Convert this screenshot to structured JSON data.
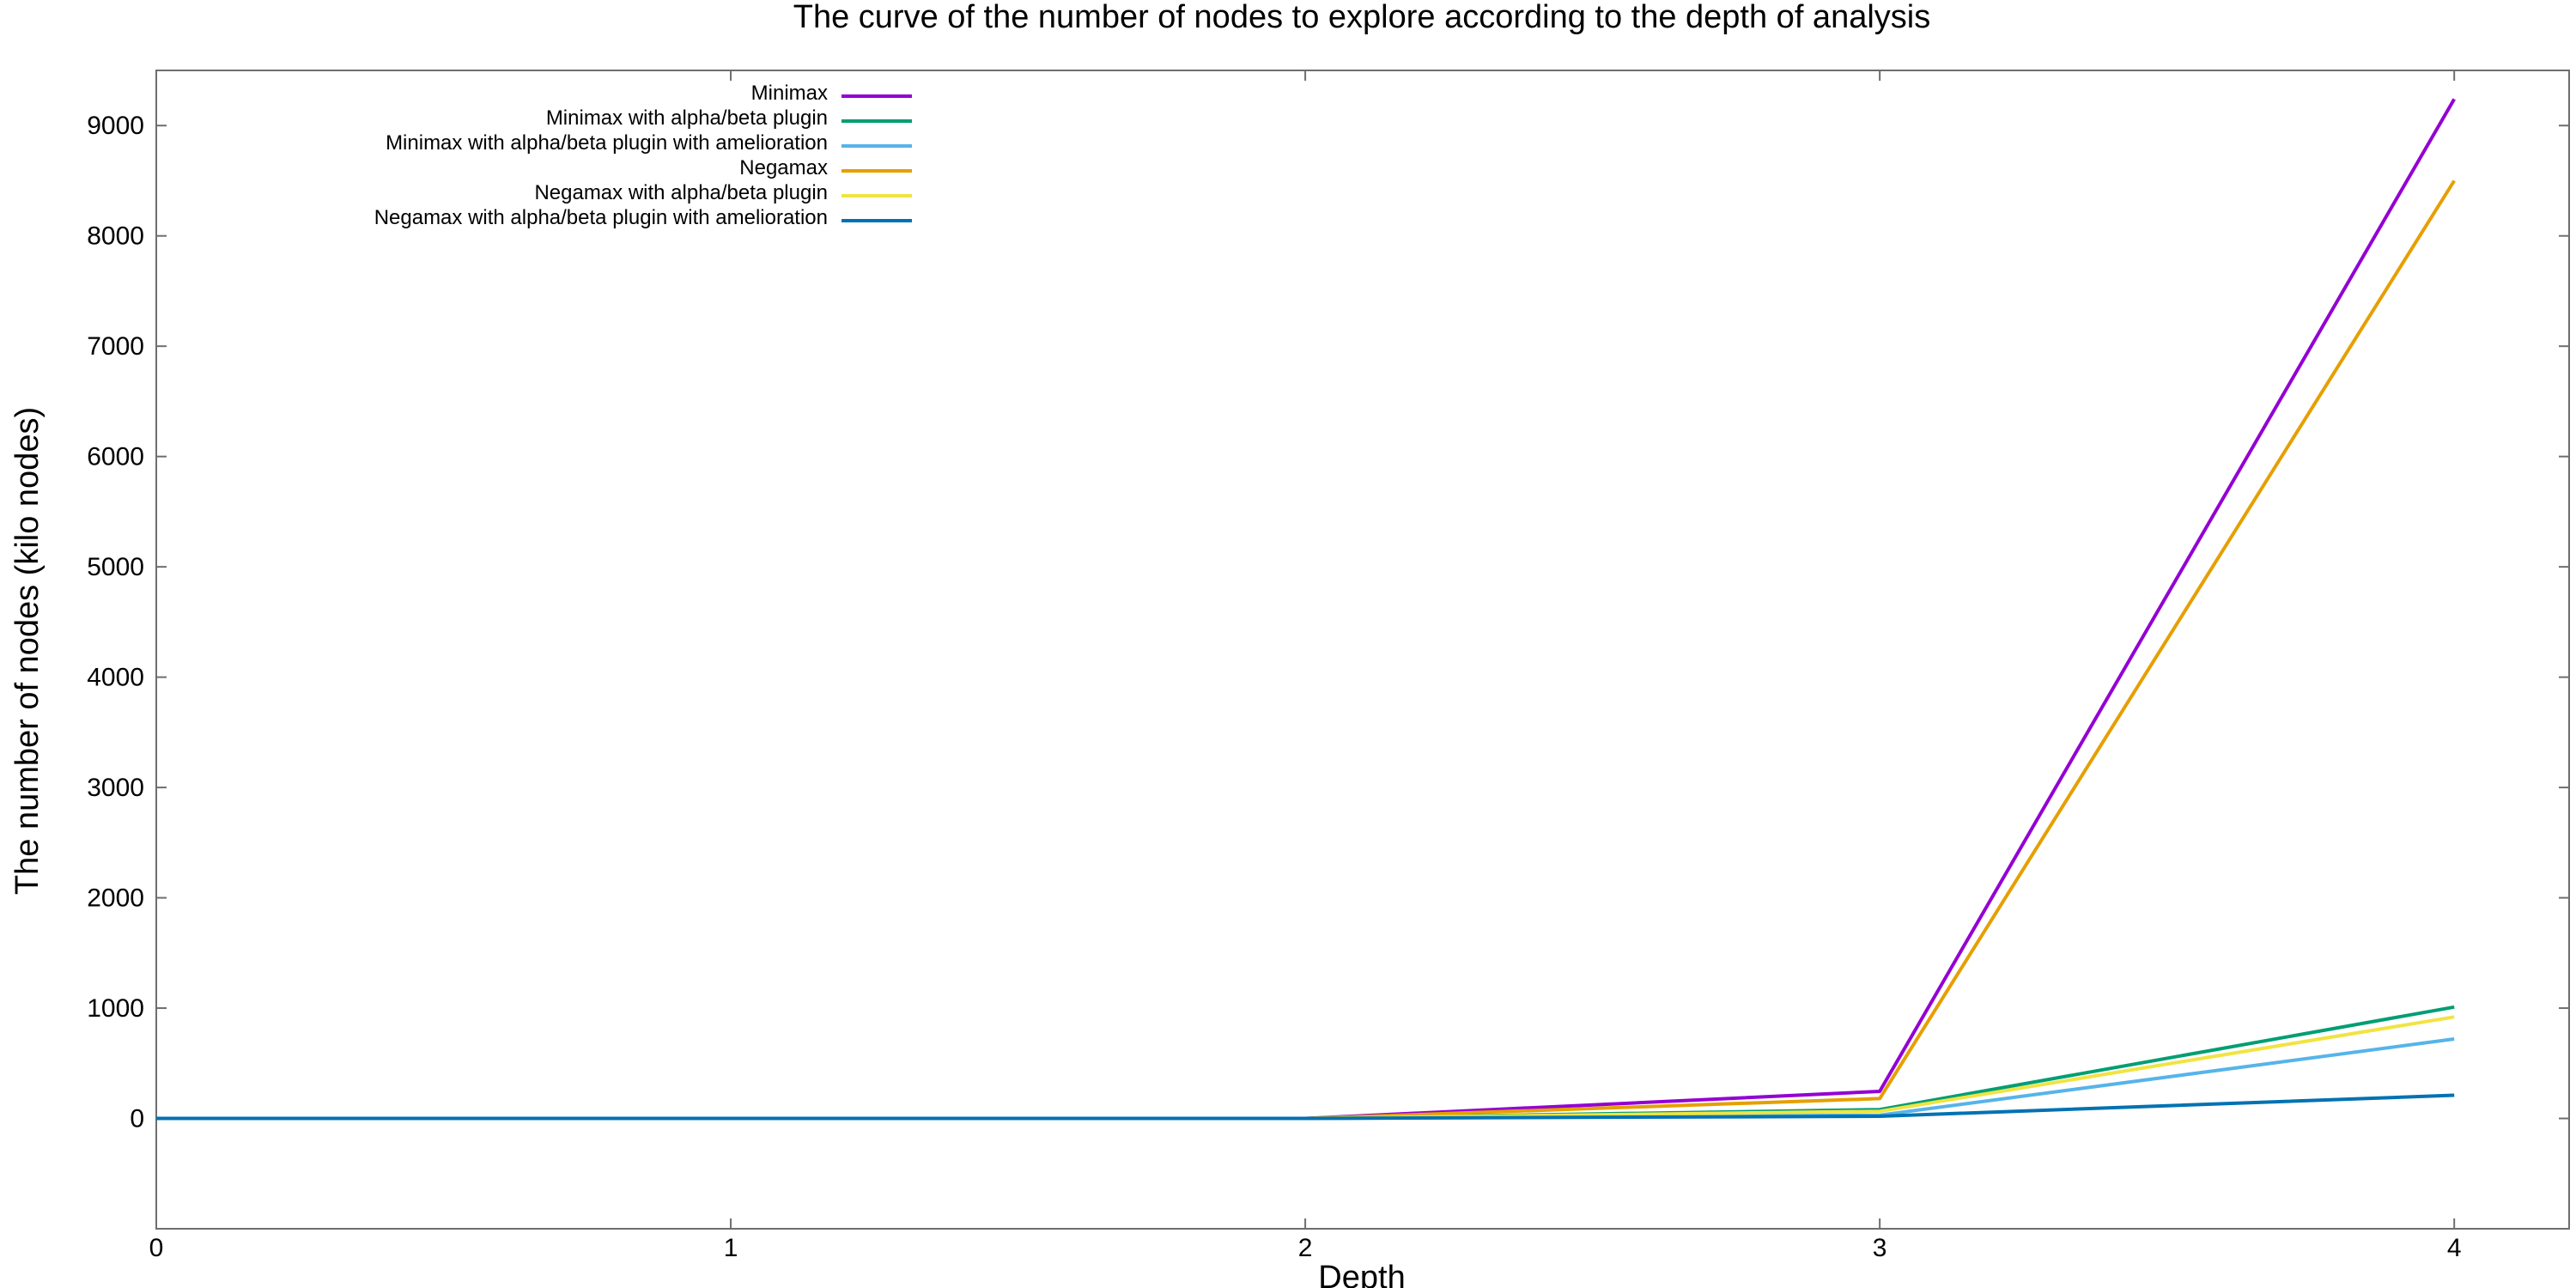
{
  "chart_data": {
    "type": "line",
    "title": "The curve of the number of nodes to explore according to the depth of analysis",
    "xlabel": "Depth",
    "ylabel": "The number of nodes (kilo nodes)",
    "xlim": [
      0,
      4.2
    ],
    "ylim": [
      -1000,
      9500
    ],
    "xticks": [
      0,
      1,
      2,
      3,
      4
    ],
    "yticks": [
      0,
      1000,
      2000,
      3000,
      4000,
      5000,
      6000,
      7000,
      8000,
      9000
    ],
    "grid": false,
    "legend_position": "top-left",
    "x": [
      0,
      1,
      2,
      3,
      4
    ],
    "series": [
      {
        "name": "Minimax",
        "color": "#9400d3",
        "values": [
          0,
          0.02,
          0.5,
          245,
          9240
        ]
      },
      {
        "name": "Minimax with alpha/beta plugin",
        "color": "#009e73",
        "values": [
          0,
          0.02,
          0.3,
          80,
          1010
        ]
      },
      {
        "name": "Minimax with alpha/beta plugin with amelioration",
        "color": "#56b4e9",
        "values": [
          0,
          0.02,
          0.2,
          30,
          720
        ]
      },
      {
        "name": "Negamax",
        "color": "#e69f00",
        "values": [
          0,
          0.02,
          0.5,
          180,
          8500
        ]
      },
      {
        "name": "Negamax with alpha/beta plugin",
        "color": "#f0e442",
        "values": [
          0,
          0.02,
          0.3,
          65,
          920
        ]
      },
      {
        "name": "Negamax with alpha/beta plugin with amelioration",
        "color": "#0072b2",
        "values": [
          0,
          0.02,
          0.1,
          20,
          210
        ]
      }
    ]
  }
}
